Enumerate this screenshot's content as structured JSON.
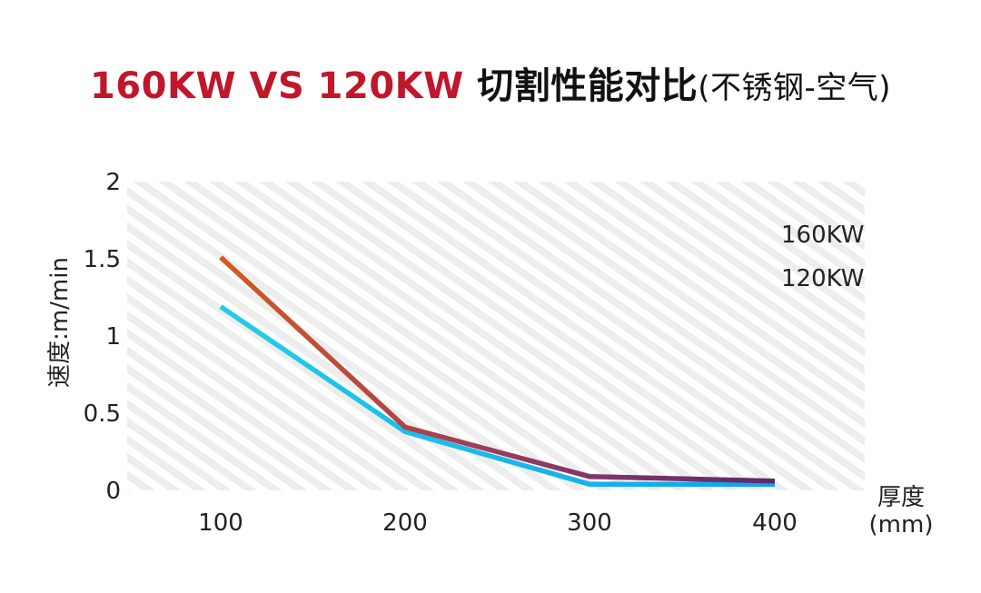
{
  "title": {
    "part1": "160KW VS 120KW ",
    "part2": "切割性能对比",
    "part3": "(不锈钢-空气)"
  },
  "chart_data": {
    "type": "line",
    "title": "160KW VS 120KW 切割性能对比(不锈钢-空气)",
    "ylabel": "速度:m/min",
    "xlabel_line1": "厚度",
    "xlabel_line2": "(mm)",
    "categories": [
      "100",
      "200",
      "300",
      "400"
    ],
    "yticks": [
      "0",
      "0.5",
      "1",
      "1.5",
      "2"
    ],
    "ylim": [
      0,
      2
    ],
    "grid": false,
    "legend_position": "top-right",
    "series": [
      {
        "name": "160KW",
        "values": [
          1.51,
          0.41,
          0.09,
          0.06
        ],
        "colors": [
          "#d35a1e",
          "#9b3a5e",
          "#5a2a6e"
        ]
      },
      {
        "name": "120KW",
        "values": [
          1.19,
          0.38,
          0.04,
          0.04
        ],
        "colors": [
          "#23cde6",
          "#18b6ef",
          "#0ea4ee"
        ]
      }
    ]
  }
}
